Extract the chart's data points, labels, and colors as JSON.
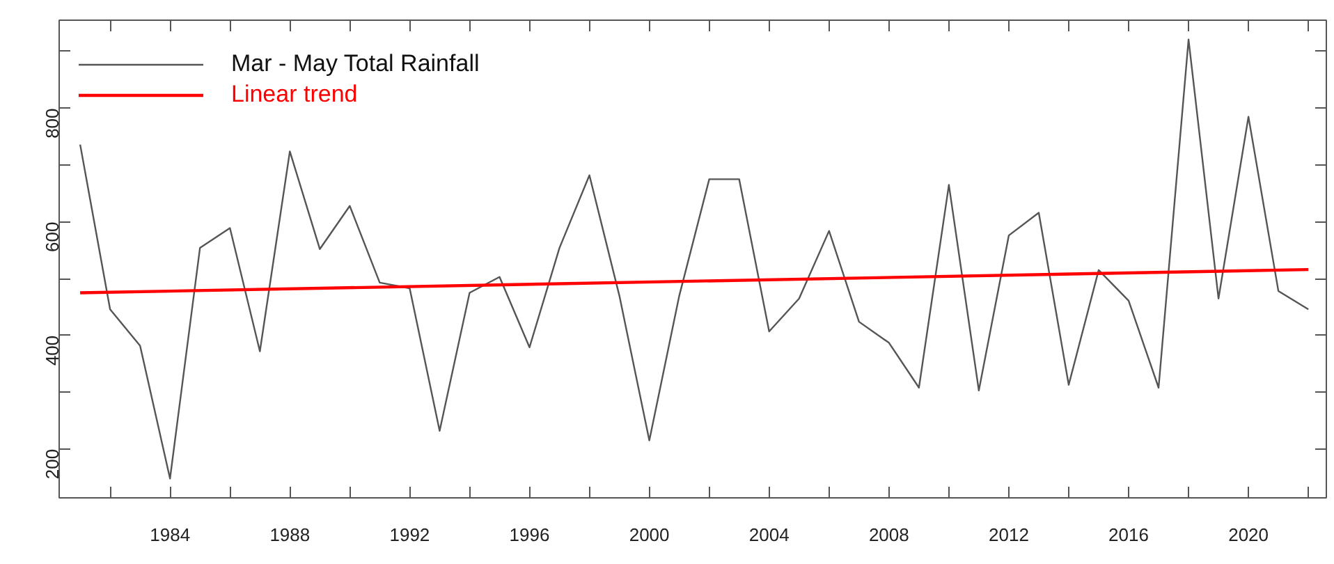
{
  "chart_data": {
    "type": "line",
    "x": [
      1981,
      1982,
      1983,
      1984,
      1985,
      1986,
      1987,
      1988,
      1989,
      1990,
      1991,
      1992,
      1993,
      1994,
      1995,
      1996,
      1997,
      1998,
      1999,
      2000,
      2001,
      2002,
      2003,
      2004,
      2005,
      2006,
      2007,
      2008,
      2009,
      2010,
      2011,
      2012,
      2013,
      2014,
      2015,
      2016,
      2017,
      2018,
      2019,
      2020,
      2021,
      2022
    ],
    "series": [
      {
        "name": "Mar - May Total Rainfall",
        "color": "#555555",
        "values": [
          736,
          446,
          382,
          148,
          554,
          589,
          372,
          724,
          552,
          628,
          493,
          483,
          232,
          475,
          503,
          379,
          554,
          682,
          470,
          215,
          470,
          675,
          675,
          407,
          465,
          584,
          424,
          387,
          308,
          665,
          303,
          576,
          616,
          313,
          515,
          461,
          308,
          921,
          465,
          785,
          478,
          446
        ]
      },
      {
        "name": "Linear trend",
        "type": "line",
        "color": "#ff0000",
        "x": [
          1981,
          2022
        ],
        "values": [
          475,
          516
        ]
      }
    ],
    "xlim": [
      1980.3,
      2022.6
    ],
    "ylim": [
      114,
      955
    ],
    "xticks": [
      {
        "value": 1982,
        "label": null
      },
      1984,
      {
        "value": 1986,
        "label": null
      },
      1988,
      {
        "value": 1990,
        "label": null
      },
      1992,
      {
        "value": 1994,
        "label": null
      },
      1996,
      {
        "value": 1998,
        "label": null
      },
      2000,
      {
        "value": 2002,
        "label": null
      },
      2004,
      {
        "value": 2006,
        "label": null
      },
      2008,
      {
        "value": 2010,
        "label": null
      },
      2012,
      {
        "value": 2014,
        "label": null
      },
      2016,
      {
        "value": 2018,
        "label": null
      },
      2020,
      {
        "value": 2022,
        "label": null
      }
    ],
    "yticks": [
      200,
      {
        "value": 300,
        "label": null
      },
      400,
      {
        "value": 500,
        "label": null
      },
      600,
      {
        "value": 700,
        "label": null
      },
      800,
      {
        "value": 900,
        "label": null
      }
    ],
    "grid": false,
    "legend": "top left"
  }
}
